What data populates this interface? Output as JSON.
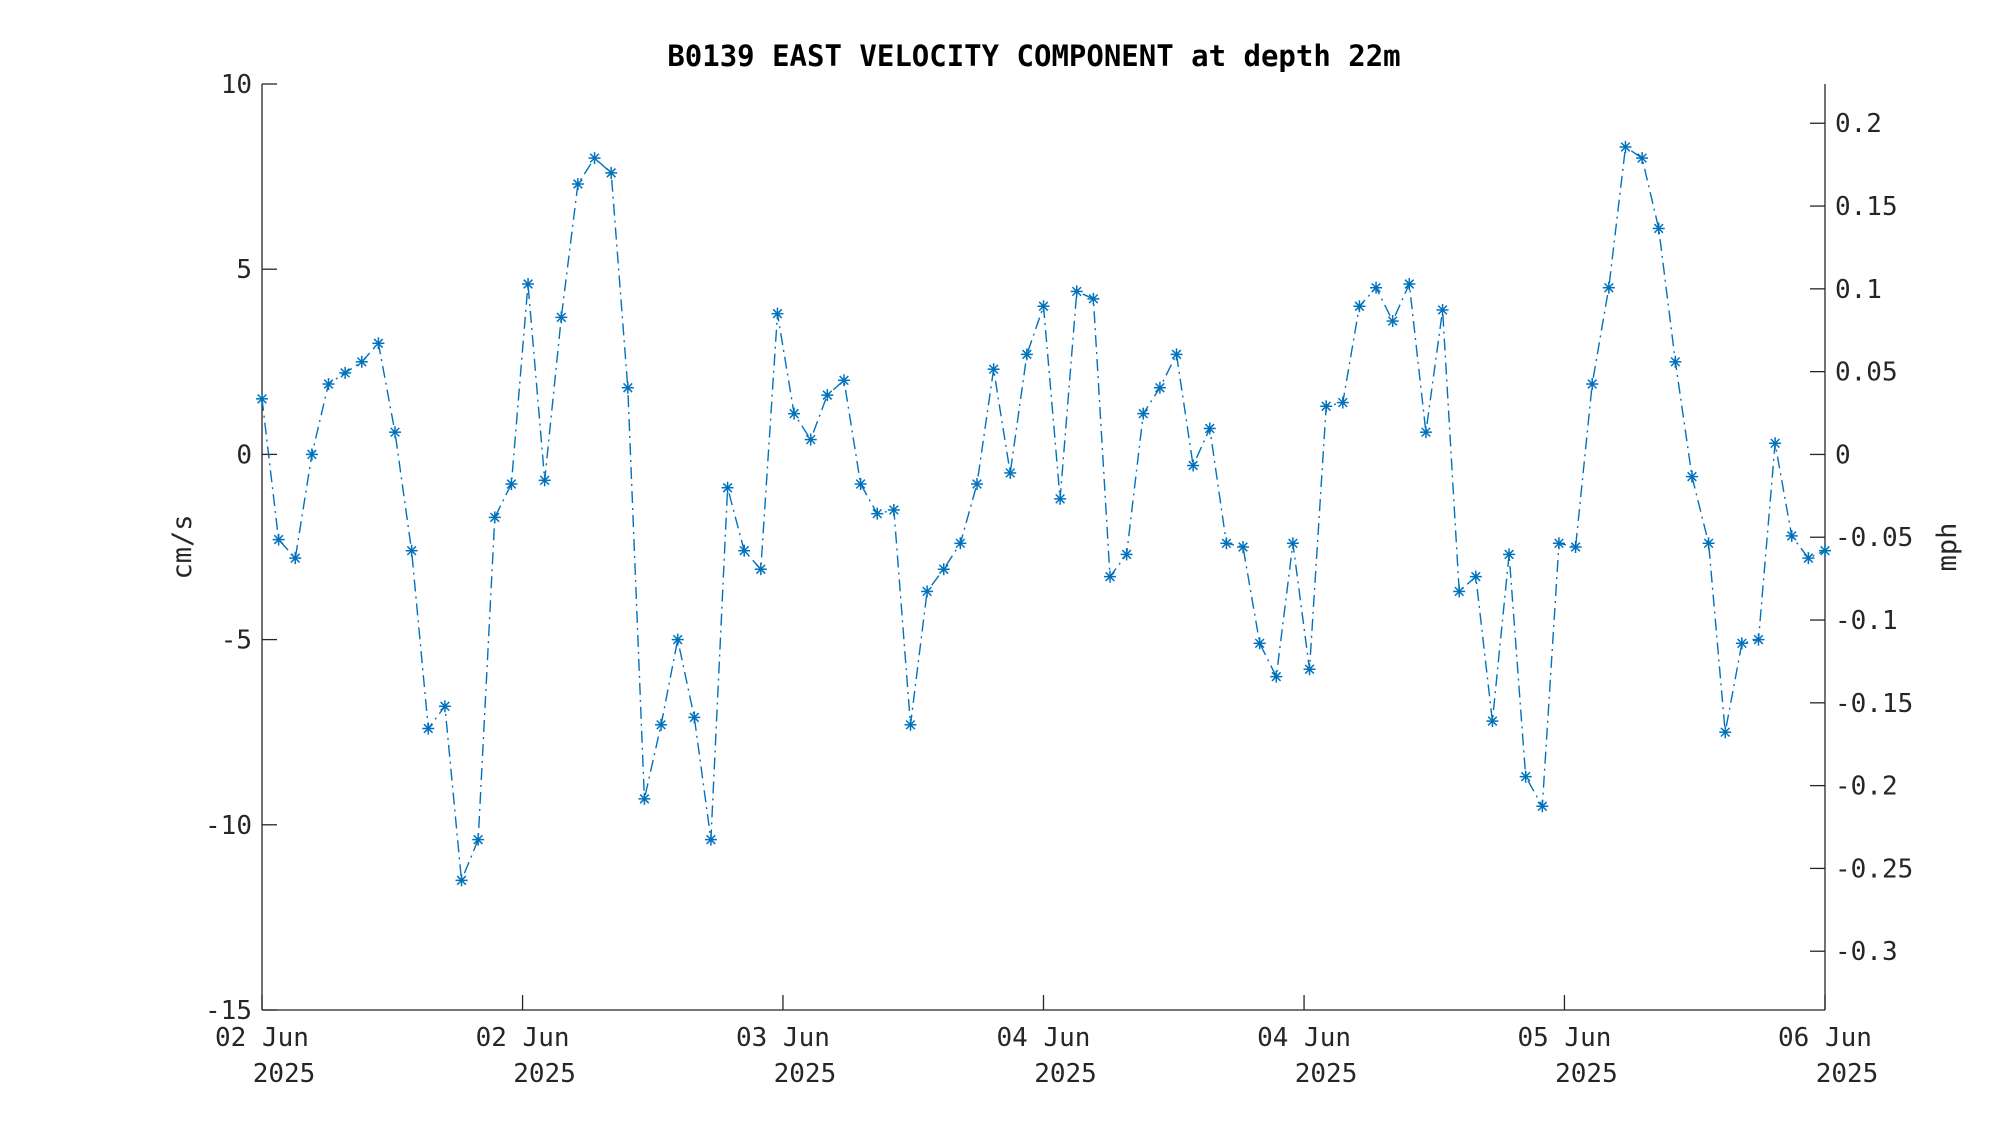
{
  "chart_data": {
    "type": "line",
    "title": "B0139 EAST VELOCITY COMPONENT at depth 22m",
    "ylabel": "cm/s",
    "ylabel_right": "mph",
    "ylim": [
      -15,
      10
    ],
    "ylim_right": [
      -0.3355,
      0.2237
    ],
    "yticks": [
      10,
      5,
      0,
      -5,
      -10,
      -15
    ],
    "yticks_right": [
      0.2,
      0.15,
      0.1,
      0.05,
      0,
      -0.05,
      -0.1,
      -0.15,
      -0.2,
      -0.25,
      -0.3
    ],
    "yticks_right_labels": [
      "0.2",
      "0.15",
      "0.1",
      "0.05",
      "0",
      "-0.05",
      "-0.1",
      "-0.15",
      "-0.2",
      "-0.25",
      "-0.3"
    ],
    "xlim": [
      0,
      94
    ],
    "xticks": [
      {
        "x": 0,
        "day": "02 Jun",
        "year": "2025"
      },
      {
        "x": 15.67,
        "day": "02 Jun",
        "year": "2025"
      },
      {
        "x": 31.33,
        "day": "03 Jun",
        "year": "2025"
      },
      {
        "x": 47,
        "day": "04 Jun",
        "year": "2025"
      },
      {
        "x": 62.67,
        "day": "04 Jun",
        "year": "2025"
      },
      {
        "x": 78.33,
        "day": "05 Jun",
        "year": "2025"
      },
      {
        "x": 94,
        "day": "06 Jun",
        "year": "2025"
      }
    ],
    "line_style": "dash-dot",
    "marker": "asterisk",
    "grid": false,
    "color": "#0072BD",
    "series": [
      {
        "values": [
          1.5,
          -2.3,
          -2.8,
          0.0,
          1.9,
          2.2,
          2.5,
          3.0,
          0.6,
          -2.6,
          -7.4,
          -6.8,
          -11.5,
          -10.4,
          -1.7,
          -0.8,
          4.6,
          -0.7,
          3.7,
          7.3,
          8.0,
          7.6,
          1.8,
          -9.3,
          -7.3,
          -5.0,
          -7.1,
          -10.4,
          -0.9,
          -2.6,
          -3.1,
          3.8,
          1.1,
          0.4,
          1.6,
          2.0,
          -0.8,
          -1.6,
          -1.5,
          -7.3,
          -3.7,
          -3.1,
          -2.4,
          -0.8,
          2.3,
          -0.5,
          2.7,
          4.0,
          -1.2,
          4.4,
          4.2,
          -3.3,
          -2.7,
          1.1,
          1.8,
          2.7,
          -0.3,
          0.7,
          -2.4,
          -2.5,
          -5.1,
          -6.0,
          -2.4,
          -5.8,
          1.3,
          1.4,
          4.0,
          4.5,
          3.6,
          4.6,
          0.6,
          3.9,
          -3.7,
          -3.3,
          -7.2,
          -2.7,
          -8.7,
          -9.5,
          -2.4,
          -2.5,
          1.9,
          4.5,
          8.3,
          8.0,
          6.1,
          2.5,
          -0.6,
          -2.4,
          -7.5,
          -5.1,
          -5.0,
          0.3,
          -2.2,
          -2.8,
          -2.6
        ]
      }
    ]
  }
}
